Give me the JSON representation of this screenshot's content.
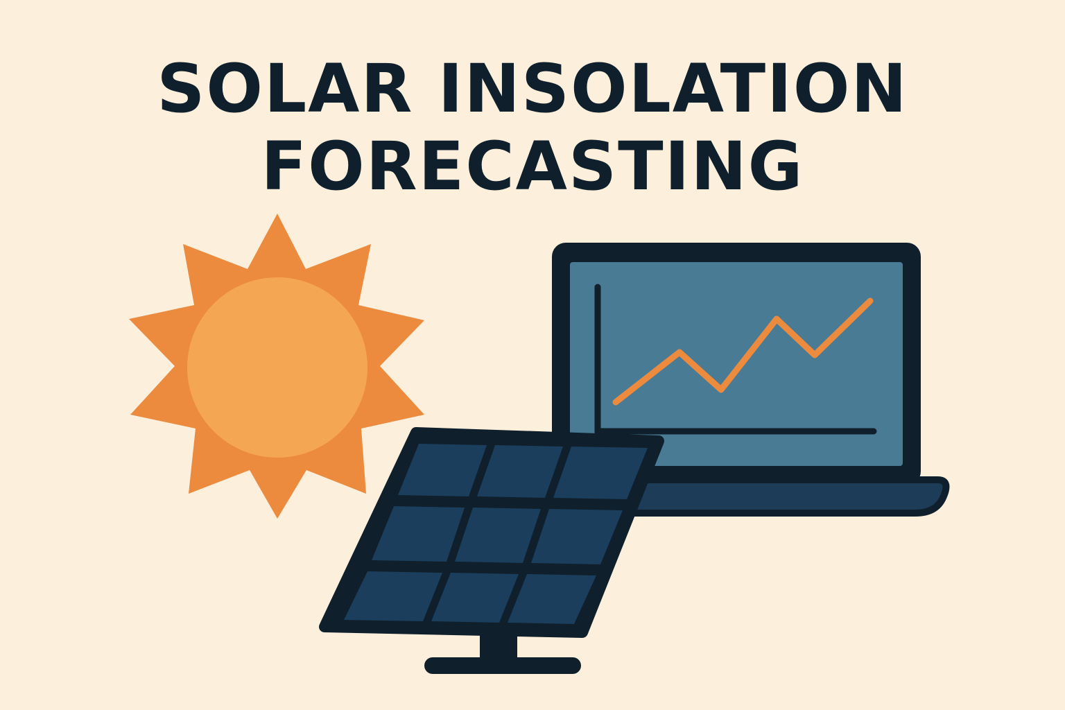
{
  "title": {
    "line1": "SOLAR INSOLATION",
    "line2": "FORECASTING"
  },
  "icons": [
    "sun-icon",
    "laptop-icon",
    "line-chart-icon",
    "solar-panel-icon"
  ],
  "colors": {
    "background": "#fcefdc",
    "text": "#0f1f2c",
    "sun_rays": "#ec8b3d",
    "sun_core": "#f5a652",
    "screen": "#4a7b95",
    "panel_cells": "#1a3e5c",
    "outline": "#0f1f2c",
    "chart_line": "#ec8b3d"
  }
}
